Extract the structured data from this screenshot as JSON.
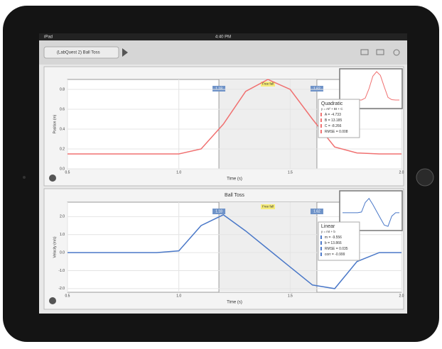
{
  "status_bar": {
    "device": "iPad",
    "time": "4:40 PM"
  },
  "toolbar": {
    "title": "(LabQuest 2) Ball Toss"
  },
  "chart_data": [
    {
      "type": "line",
      "xlabel": "Time (s)",
      "ylabel": "Position (m)",
      "x": [
        0.5,
        0.6,
        0.7,
        0.8,
        0.9,
        1.0,
        1.1,
        1.2,
        1.3,
        1.4,
        1.5,
        1.6,
        1.7,
        1.8,
        1.9,
        2.0
      ],
      "series": [
        {
          "color": "#f07070",
          "values": [
            0.15,
            0.15,
            0.15,
            0.15,
            0.15,
            0.15,
            0.2,
            0.45,
            0.78,
            0.9,
            0.8,
            0.5,
            0.22,
            0.16,
            0.15,
            0.15
          ]
        }
      ],
      "xlim": [
        0.5,
        2.0
      ],
      "xticks": [
        0.5,
        {
          "value": 1.0,
          "label": "1.0"
        },
        1.5,
        {
          "value": 2.0,
          "label": "2.0"
        }
      ],
      "ylim": [
        0,
        0.9
      ],
      "yticks": [
        {
          "value": 0,
          "label": "0.0"
        },
        0.2,
        0.4,
        0.6,
        0.8
      ],
      "grid": true,
      "selection": {
        "start": 1.18,
        "end": 1.62,
        "label": "Free fall"
      },
      "fit": {
        "title": "Quadratic",
        "equation": "y = At² + Bt + C",
        "params": [
          "A = -4.733",
          "B = 13.185",
          "C = -8.266",
          "RMSE = 0.008"
        ]
      }
    },
    {
      "type": "line",
      "title": "Ball Toss",
      "xlabel": "Time (s)",
      "ylabel": "Velocity (m/s)",
      "x": [
        0.5,
        0.6,
        0.7,
        0.8,
        0.9,
        1.0,
        1.1,
        1.2,
        1.3,
        1.4,
        1.5,
        1.6,
        1.7,
        1.8,
        1.9,
        2.0
      ],
      "series": [
        {
          "color": "#4a78c8",
          "values": [
            0,
            0,
            0,
            0,
            0,
            0.1,
            1.5,
            2.1,
            1.2,
            0.2,
            -0.8,
            -1.8,
            -2.0,
            -0.5,
            0,
            0
          ]
        }
      ],
      "xlim": [
        0.5,
        2.0
      ],
      "xticks": [
        0.5,
        {
          "value": 1.0,
          "label": "1.0"
        },
        1.5,
        {
          "value": 2.0,
          "label": "2.0"
        }
      ],
      "ylim": [
        -2.2,
        2.8
      ],
      "yticks": [
        {
          "value": -2,
          "label": "-2.0"
        },
        {
          "value": -1,
          "label": "-1.0"
        },
        {
          "value": 0,
          "label": "0.0"
        },
        {
          "value": 1,
          "label": "1.0"
        },
        {
          "value": 2,
          "label": "2.0"
        }
      ],
      "grid": true,
      "selection": {
        "start": 1.18,
        "end": 1.62,
        "label": "Free fall"
      },
      "fit": {
        "title": "Linear",
        "equation": "y = mt + b",
        "params": [
          "m = -9.556",
          "b = 13.866",
          "RMSE = 0.035",
          "corr = -0.999"
        ]
      }
    }
  ]
}
